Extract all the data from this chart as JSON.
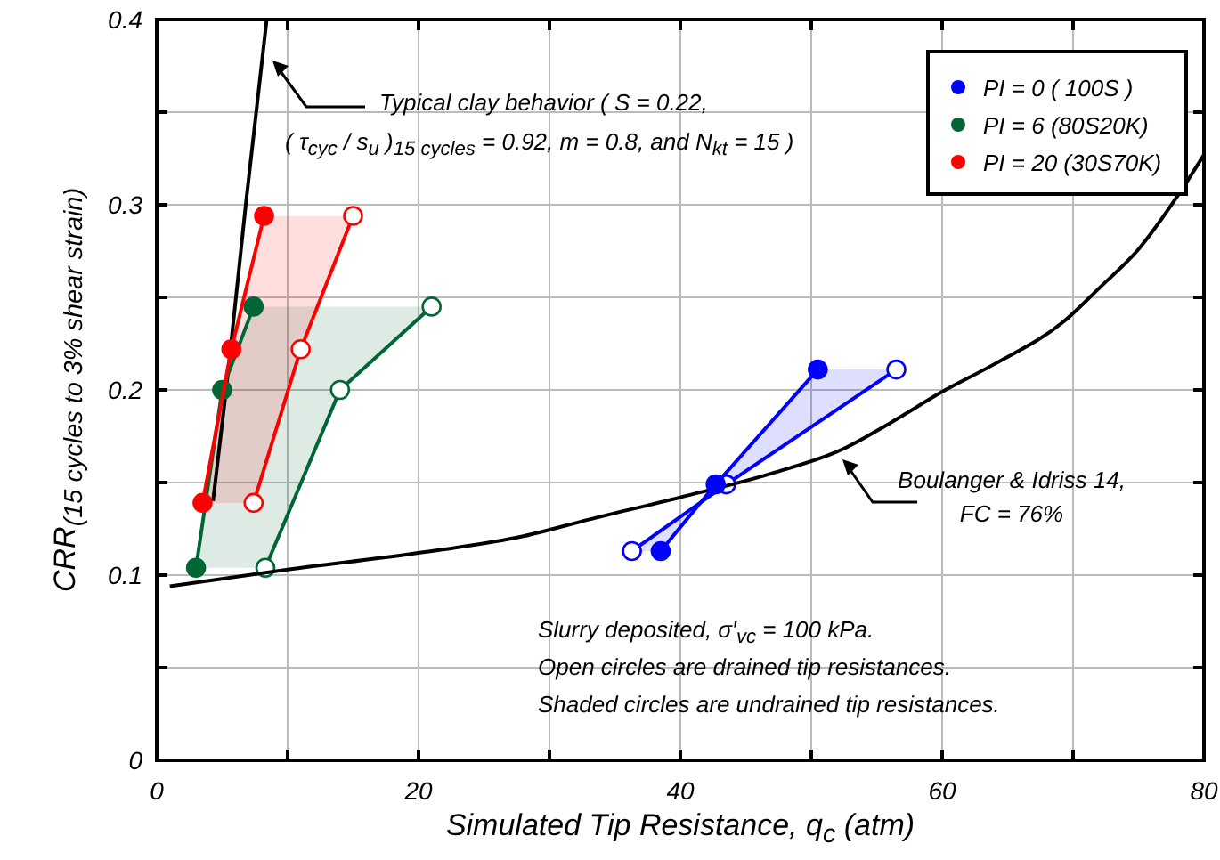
{
  "chart_data": {
    "type": "line",
    "xlabel": "Simulated Tip Resistance, q$_{c}$ (atm)",
    "ylabel": "CRR$_{(15 cycles to 3% shear strain)}$",
    "xlim": [
      0,
      80
    ],
    "xticks": [
      0,
      {
        "value": 10,
        "label": null
      },
      20,
      {
        "value": 30,
        "label": null
      },
      40,
      {
        "value": 50,
        "label": null
      },
      60,
      {
        "value": 70,
        "label": null
      },
      80
    ],
    "ylim": [
      0,
      0.4
    ],
    "yticks": [
      0,
      {
        "value": 0.05,
        "label": null
      },
      0.1,
      {
        "value": 0.15,
        "label": null
      },
      0.2,
      {
        "value": 0.25,
        "label": null
      },
      0.3,
      {
        "value": 0.35,
        "label": null
      },
      0.4
    ],
    "grid": true,
    "legend": "top right",
    "marker": "circle",
    "line_style": "solid",
    "series": [
      {
        "name": "PI = 0 ( 100S )",
        "color": "#0000ff",
        "x": [
          38.5,
          42.7,
          50.5
        ],
        "values": [
          0.113,
          0.149,
          0.211
        ]
      },
      {
        "color": "#0000ff",
        "x": [
          36.3,
          43.5,
          56.5
        ],
        "values": [
          0.113,
          0.149,
          0.211
        ]
      },
      {
        "name": "PI = 6 (80S20K)",
        "color": "#006633",
        "x": [
          3,
          5,
          7.4
        ],
        "values": [
          0.104,
          0.2,
          0.245
        ]
      },
      {
        "color": "#006633",
        "x": [
          8.3,
          14,
          21
        ],
        "values": [
          0.104,
          0.2,
          0.245
        ]
      },
      {
        "name": "PI = 20 (30S70K)",
        "color": "#ff0000",
        "x": [
          3.5,
          5.7,
          8.2
        ],
        "values": [
          0.139,
          0.222,
          0.294
        ]
      },
      {
        "color": "#ff0000",
        "x": [
          7.4,
          11,
          15
        ],
        "values": [
          0.139,
          0.222,
          0.294
        ]
      },
      {
        "color": "#000000",
        "marker": "none",
        "x": [
          4.3,
          5.3,
          6.8,
          8.4
        ],
        "values": [
          0.14,
          0.2,
          0.3,
          0.4
        ]
      },
      {
        "color": "#000000",
        "marker": "none",
        "x": [
          1,
          10,
          20,
          28,
          33,
          40,
          47,
          52.4,
          56,
          60,
          64,
          69.3,
          72,
          75,
          78,
          80
        ],
        "values": [
          0.094,
          0.103,
          0.112,
          0.121,
          0.13,
          0.142,
          0.155,
          0.168,
          0.182,
          0.199,
          0.214,
          0.237,
          0.255,
          0.276,
          0.305,
          0.327
        ]
      }
    ],
    "annotations": [
      "Typical clay behavior ( S = 0.22,\n( τ$_{cyc}$ / s$_{u}$ )$_{15 cycles}$ = 0.92, m = 0.8, and N$_{kt}$ = 15 )",
      "Boulanger & Idriss 14,\nFC = 76%",
      "Slurry deposited, σ′$_{vc}$ = 100 kPa.\nOpen circles are drained tip resistances.\nShaded circles are undrained tip resistances."
    ]
  }
}
